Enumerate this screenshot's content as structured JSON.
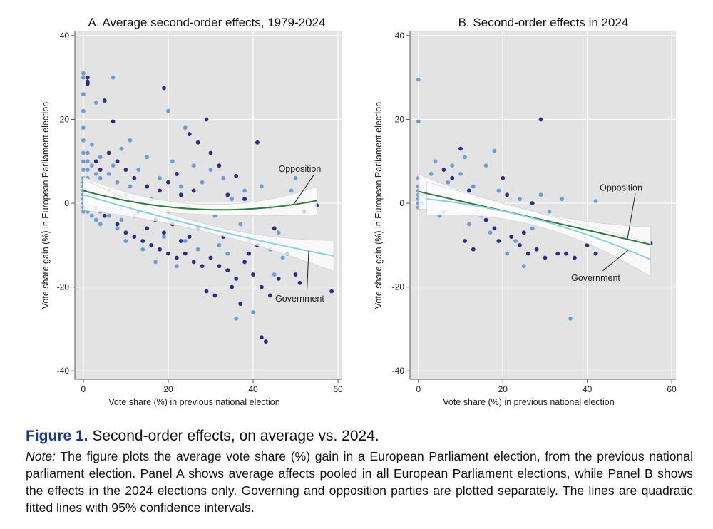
{
  "colors": {
    "panel_bg": "#e3e3e3",
    "grid": "#ffffff",
    "government": "#2b2b8a",
    "opposition": "#6a9fd6",
    "fit_opposition": "#2e7d3a",
    "fit_government": "#8ad0e8",
    "ci_band": "#ffffff",
    "caption_label": "#1a3a8c"
  },
  "chart_data": [
    {
      "type": "scatter",
      "panel": "A",
      "title": "A. Average second-order effects, 1979-2024",
      "xlabel": "Vote share (%) in previous national election",
      "ylabel": "Vote share gain (%) in European Parliament election",
      "xlim": [
        -2,
        61
      ],
      "ylim": [
        -42,
        41
      ],
      "xticks": [
        0,
        20,
        40,
        60
      ],
      "yticks": [
        -40,
        -20,
        0,
        20,
        40
      ],
      "grid": true,
      "series": [
        {
          "name": "Government",
          "color_key": "government",
          "points": [
            [
              1,
              30
            ],
            [
              1,
              29
            ],
            [
              1,
              28.5
            ],
            [
              5,
              24.5
            ],
            [
              7,
              19.5
            ],
            [
              19,
              27.5
            ],
            [
              29,
              20
            ],
            [
              27,
              14.5
            ],
            [
              25,
              16.5
            ],
            [
              30,
              12
            ],
            [
              32,
              9
            ],
            [
              36,
              6.5
            ],
            [
              41,
              14.5
            ],
            [
              22,
              7
            ],
            [
              20,
              5
            ],
            [
              18,
              3
            ],
            [
              15,
              4
            ],
            [
              12,
              6
            ],
            [
              10,
              8
            ],
            [
              8,
              10
            ],
            [
              6,
              12
            ],
            [
              4,
              8
            ],
            [
              3,
              10
            ],
            [
              26,
              3
            ],
            [
              23,
              2
            ],
            [
              34,
              2
            ],
            [
              38,
              1
            ],
            [
              44,
              -1
            ],
            [
              52,
              -2
            ],
            [
              55,
              -0.5
            ],
            [
              5,
              -3
            ],
            [
              8,
              -5
            ],
            [
              10,
              -7
            ],
            [
              12,
              -8
            ],
            [
              14,
              -9
            ],
            [
              16,
              -10
            ],
            [
              18,
              -11
            ],
            [
              20,
              -12
            ],
            [
              22,
              -13
            ],
            [
              24,
              -12
            ],
            [
              26,
              -14
            ],
            [
              28,
              -15
            ],
            [
              30,
              -13
            ],
            [
              32,
              -15
            ],
            [
              34,
              -16
            ],
            [
              36,
              -18
            ],
            [
              38,
              -14
            ],
            [
              40,
              -17
            ],
            [
              42,
              -20
            ],
            [
              44,
              -22
            ],
            [
              46,
              -18
            ],
            [
              50,
              -17
            ],
            [
              51,
              -19
            ],
            [
              58.5,
              -21
            ],
            [
              42,
              -32
            ],
            [
              43,
              -33
            ],
            [
              29,
              -21
            ],
            [
              31,
              -22
            ],
            [
              35,
              -20
            ],
            [
              37,
              -24
            ],
            [
              39,
              -12
            ],
            [
              41,
              -10
            ],
            [
              25,
              -8
            ],
            [
              27,
              -6
            ],
            [
              21,
              -5
            ],
            [
              17,
              -4
            ],
            [
              13,
              -2
            ],
            [
              9,
              -1
            ],
            [
              15,
              -6
            ],
            [
              19,
              -7
            ],
            [
              23,
              -9
            ],
            [
              33,
              -8
            ],
            [
              45,
              -6
            ],
            [
              48,
              -12
            ]
          ]
        },
        {
          "name": "Opposition",
          "color_key": "opposition",
          "points": [
            [
              0,
              31
            ],
            [
              0,
              30
            ],
            [
              0,
              26
            ],
            [
              0,
              22
            ],
            [
              0,
              18
            ],
            [
              0,
              15
            ],
            [
              0,
              12
            ],
            [
              0,
              10
            ],
            [
              0,
              8
            ],
            [
              0,
              6
            ],
            [
              0,
              5
            ],
            [
              0,
              4
            ],
            [
              0,
              3
            ],
            [
              0,
              2
            ],
            [
              0,
              1
            ],
            [
              0,
              0
            ],
            [
              0,
              -1
            ],
            [
              0,
              -2
            ],
            [
              1,
              12
            ],
            [
              1,
              10
            ],
            [
              1,
              8
            ],
            [
              1,
              6
            ],
            [
              1,
              4
            ],
            [
              1,
              2
            ],
            [
              1,
              0
            ],
            [
              1,
              -2
            ],
            [
              2,
              14
            ],
            [
              2,
              9
            ],
            [
              2,
              5
            ],
            [
              2,
              1
            ],
            [
              2,
              -3
            ],
            [
              3,
              24
            ],
            [
              3,
              7
            ],
            [
              3,
              3
            ],
            [
              3,
              -1
            ],
            [
              3,
              -4
            ],
            [
              4,
              11
            ],
            [
              4,
              6
            ],
            [
              4,
              2
            ],
            [
              4,
              -2
            ],
            [
              4,
              -5
            ],
            [
              6,
              7
            ],
            [
              6,
              3
            ],
            [
              6,
              -3
            ],
            [
              7,
              30
            ],
            [
              7,
              9
            ],
            [
              8,
              5
            ],
            [
              8,
              1
            ],
            [
              8,
              -6
            ],
            [
              9,
              13
            ],
            [
              9,
              -4
            ],
            [
              10,
              2
            ],
            [
              10,
              -9
            ],
            [
              11,
              15
            ],
            [
              11,
              4
            ],
            [
              12,
              -3
            ],
            [
              13,
              8
            ],
            [
              14,
              -11
            ],
            [
              15,
              11
            ],
            [
              16,
              1
            ],
            [
              17,
              -14
            ],
            [
              18,
              6
            ],
            [
              19,
              -8
            ],
            [
              20,
              22
            ],
            [
              20,
              -2
            ],
            [
              21,
              10
            ],
            [
              22,
              -15
            ],
            [
              23,
              4
            ],
            [
              24,
              18
            ],
            [
              24,
              -9
            ],
            [
              25,
              -1
            ],
            [
              26,
              9
            ],
            [
              27,
              -11
            ],
            [
              28,
              5
            ],
            [
              29,
              -6
            ],
            [
              30,
              8
            ],
            [
              31,
              -3
            ],
            [
              32,
              -10
            ],
            [
              33,
              6
            ],
            [
              34,
              -12
            ],
            [
              35,
              1
            ],
            [
              36,
              -27.5
            ],
            [
              37,
              -5
            ],
            [
              38,
              3
            ],
            [
              39,
              -9
            ],
            [
              40,
              -26
            ],
            [
              42,
              4
            ],
            [
              44,
              -11
            ],
            [
              46,
              -7
            ],
            [
              48,
              0
            ],
            [
              49,
              3
            ],
            [
              50,
              6
            ],
            [
              47,
              -13
            ],
            [
              45,
              -17
            ]
          ]
        }
      ],
      "fits": [
        {
          "name": "Opposition",
          "type": "quadratic",
          "color_key": "fit_opposition",
          "a": 3.0,
          "b": -0.28,
          "c": 0.0043,
          "x_range": [
            0,
            55
          ],
          "ci_base": 1.2,
          "ci_growth": 0.0028
        },
        {
          "name": "Government",
          "type": "quadratic",
          "color_key": "fit_government",
          "a": 2.0,
          "b": -0.3,
          "c": 0.0009,
          "x_range": [
            0,
            59
          ],
          "ci_base": 0.9,
          "ci_growth": 0.0032
        }
      ],
      "annotations": [
        {
          "text": "Opposition",
          "x": 51,
          "y": 7.5
        },
        {
          "text": "Government",
          "x": 51,
          "y": -23.5
        }
      ]
    },
    {
      "type": "scatter",
      "panel": "B",
      "title": "B. Second-order effects in 2024",
      "xlabel": "Vote share (%) in previous national election",
      "ylabel": "Vote share gain (%) in European Parliament election",
      "xlim": [
        -2,
        61
      ],
      "ylim": [
        -42,
        41
      ],
      "xticks": [
        0,
        20,
        40,
        60
      ],
      "yticks": [
        -40,
        -20,
        0,
        20,
        40
      ],
      "grid": true,
      "series": [
        {
          "name": "Government",
          "color_key": "government",
          "points": [
            [
              29,
              20
            ],
            [
              6,
              8
            ],
            [
              8,
              6
            ],
            [
              10,
              13
            ],
            [
              12,
              3
            ],
            [
              14,
              -2
            ],
            [
              16,
              -4
            ],
            [
              18,
              -6
            ],
            [
              20,
              6
            ],
            [
              22,
              -8
            ],
            [
              24,
              -10
            ],
            [
              26,
              -12
            ],
            [
              28,
              -11
            ],
            [
              30,
              -13
            ],
            [
              33,
              -12
            ],
            [
              35,
              -12
            ],
            [
              37,
              -13
            ],
            [
              40,
              -10
            ],
            [
              42,
              -12
            ],
            [
              55,
              -9.5
            ],
            [
              11,
              -9
            ],
            [
              13,
              -11
            ],
            [
              19,
              -9
            ],
            [
              25,
              -7
            ],
            [
              21,
              2
            ],
            [
              27,
              0
            ]
          ]
        },
        {
          "name": "Opposition",
          "color_key": "opposition",
          "points": [
            [
              0,
              29.5
            ],
            [
              0,
              19.5
            ],
            [
              0,
              6
            ],
            [
              0,
              4
            ],
            [
              0,
              3
            ],
            [
              0,
              2
            ],
            [
              0,
              1
            ],
            [
              0,
              0
            ],
            [
              0,
              -1
            ],
            [
              1,
              2
            ],
            [
              1,
              0
            ],
            [
              2,
              1
            ],
            [
              3,
              7
            ],
            [
              3,
              -1
            ],
            [
              4,
              10
            ],
            [
              5,
              2
            ],
            [
              5,
              -3
            ],
            [
              6,
              -2
            ],
            [
              7,
              5
            ],
            [
              8,
              9
            ],
            [
              9,
              -1
            ],
            [
              10,
              7
            ],
            [
              11,
              11
            ],
            [
              12,
              -5
            ],
            [
              13,
              4
            ],
            [
              15,
              -3
            ],
            [
              16,
              9
            ],
            [
              17,
              -7
            ],
            [
              18,
              12.5
            ],
            [
              19,
              3
            ],
            [
              20,
              -1
            ],
            [
              21,
              -12
            ],
            [
              23,
              -9
            ],
            [
              24,
              1
            ],
            [
              25,
              -15
            ],
            [
              26,
              -4
            ],
            [
              27,
              -6
            ],
            [
              29,
              2
            ],
            [
              31,
              -2
            ],
            [
              33,
              -6
            ],
            [
              34,
              1
            ],
            [
              36,
              -27.5
            ],
            [
              42,
              0.5
            ]
          ]
        }
      ],
      "fits": [
        {
          "name": "Opposition",
          "type": "quadratic",
          "color_key": "fit_opposition",
          "a": 2.8,
          "b": -0.23,
          "c": 0.0,
          "x_range": [
            0,
            55
          ],
          "ci_base": 1.5,
          "ci_growth": 0.0035
        },
        {
          "name": "Government",
          "type": "quadratic",
          "color_key": "fit_government",
          "a": 1.2,
          "b": -0.09,
          "c": -0.0032,
          "x_range": [
            2,
            55
          ],
          "ci_base": 1.6,
          "ci_growth": 0.0035
        }
      ],
      "annotations": [
        {
          "text": "Opposition",
          "x": 48,
          "y": 3
        },
        {
          "text": "Government",
          "x": 42,
          "y": -18.5
        }
      ]
    }
  ],
  "caption": {
    "label": "Figure 1.",
    "title": "Second-order effects, on average vs. 2024.",
    "note_label": "Note:",
    "note_text": "The figure plots the average vote share (%) gain in a European Parliament election, from the previous national parliament election. Panel A shows average affects pooled in all European Parliament elections, while Panel B shows the effects in the 2024 elections only. Governing and opposition parties are plotted separately. The lines are quadratic fitted lines with 95% confidence intervals."
  }
}
